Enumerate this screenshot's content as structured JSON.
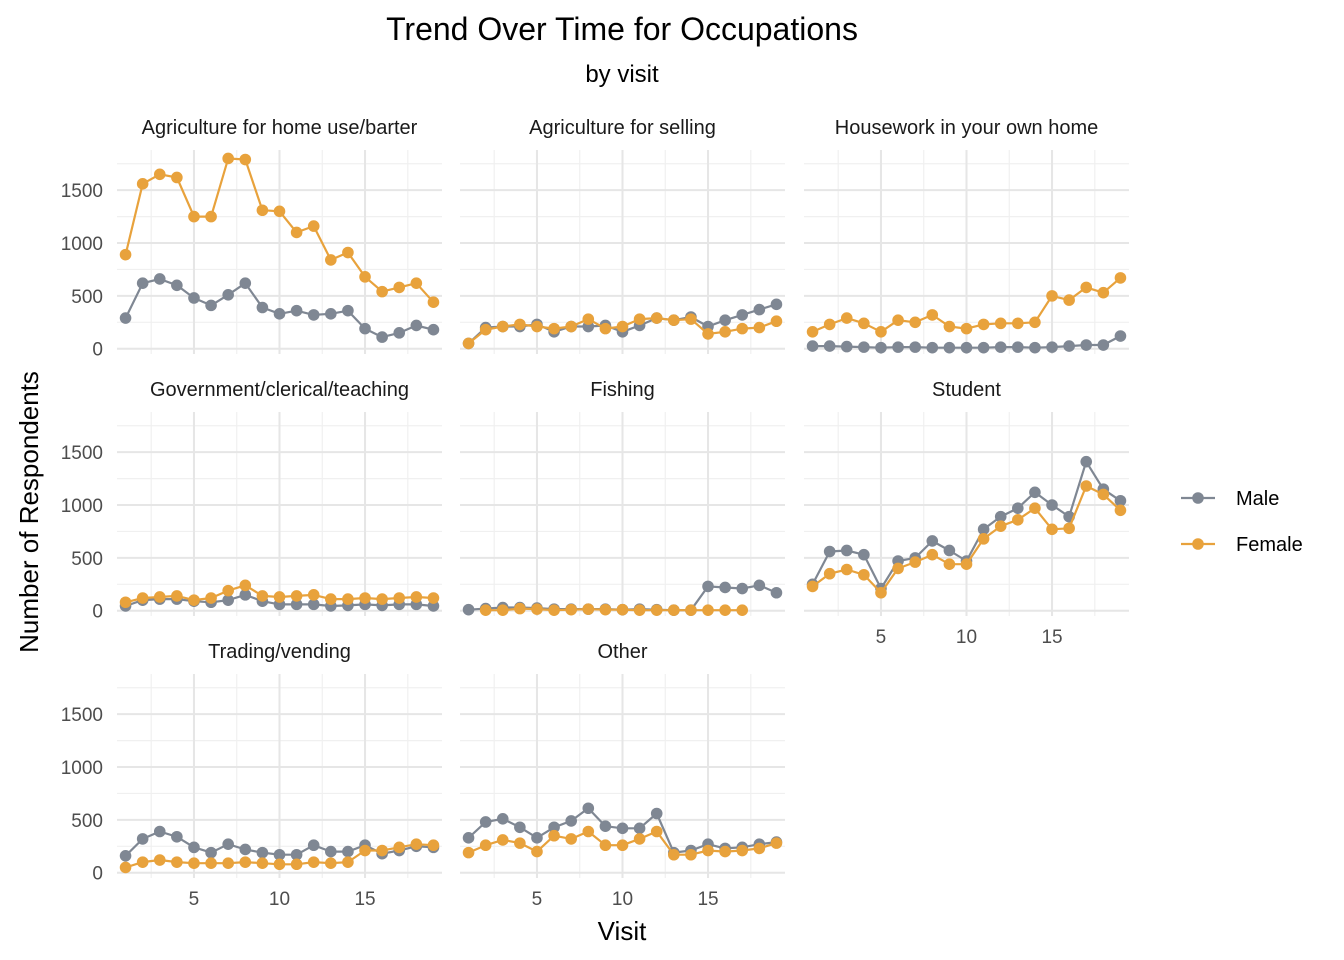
{
  "chart_data": {
    "type": "line",
    "title": "Trend Over Time for Occupations",
    "subtitle": "by visit",
    "xlabel": "Visit",
    "ylabel": "Number of Respondents",
    "x": [
      1,
      2,
      3,
      4,
      5,
      6,
      7,
      8,
      9,
      10,
      11,
      12,
      13,
      14,
      15,
      16,
      17,
      18,
      19
    ],
    "xlim": [
      0.5,
      19.5
    ],
    "ylim": [
      -50,
      1880
    ],
    "xticks": [
      5,
      10,
      15
    ],
    "yticks": [
      0,
      500,
      1000,
      1500
    ],
    "grid": true,
    "legend_position": "right",
    "legend": [
      {
        "name": "Male",
        "color": "#7F8793"
      },
      {
        "name": "Female",
        "color": "#E8A23C"
      }
    ],
    "panels": [
      {
        "title": "Agriculture for home use/barter",
        "series": [
          {
            "name": "Male",
            "x": [
              1,
              2,
              3,
              4,
              5,
              6,
              7,
              8,
              9,
              10,
              11,
              12,
              13,
              14,
              15,
              16,
              17,
              18,
              19
            ],
            "values": [
              290,
              620,
              660,
              600,
              480,
              410,
              510,
              620,
              390,
              330,
              360,
              320,
              330,
              360,
              190,
              110,
              150,
              220,
              180
            ]
          },
          {
            "name": "Female",
            "x": [
              1,
              2,
              3,
              4,
              5,
              6,
              7,
              8,
              9,
              10,
              11,
              12,
              13,
              14,
              15,
              16,
              17,
              18,
              19
            ],
            "values": [
              890,
              1560,
              1650,
              1620,
              1250,
              1250,
              1800,
              1790,
              1310,
              1300,
              1100,
              1160,
              840,
              910,
              680,
              540,
              580,
              620,
              440
            ]
          }
        ]
      },
      {
        "title": "Agriculture for selling",
        "series": [
          {
            "name": "Male",
            "x": [
              1,
              2,
              3,
              4,
              5,
              6,
              7,
              8,
              9,
              10,
              11,
              12,
              13,
              14,
              15,
              16,
              17,
              18,
              19
            ],
            "values": [
              50,
              200,
              210,
              210,
              230,
              160,
              210,
              210,
              220,
              160,
              220,
              290,
              270,
              300,
              210,
              270,
              320,
              370,
              420
            ]
          },
          {
            "name": "Female",
            "x": [
              1,
              2,
              3,
              4,
              5,
              6,
              7,
              8,
              9,
              10,
              11,
              12,
              13,
              14,
              15,
              16,
              17,
              18,
              19
            ],
            "values": [
              50,
              180,
              210,
              230,
              210,
              190,
              210,
              280,
              190,
              210,
              280,
              290,
              270,
              280,
              140,
              160,
              190,
              200,
              260
            ]
          }
        ]
      },
      {
        "title": "Housework in your own home",
        "series": [
          {
            "name": "Male",
            "x": [
              1,
              2,
              3,
              4,
              5,
              6,
              7,
              8,
              9,
              10,
              11,
              12,
              13,
              14,
              15,
              16,
              17,
              18,
              19
            ],
            "values": [
              25,
              25,
              20,
              15,
              10,
              15,
              15,
              10,
              10,
              10,
              10,
              15,
              15,
              10,
              15,
              25,
              35,
              35,
              120
            ]
          },
          {
            "name": "Female",
            "x": [
              1,
              2,
              3,
              4,
              5,
              6,
              7,
              8,
              9,
              10,
              11,
              12,
              13,
              14,
              15,
              16,
              17,
              18,
              19
            ],
            "values": [
              160,
              230,
              290,
              240,
              160,
              270,
              250,
              320,
              210,
              190,
              230,
              240,
              240,
              250,
              500,
              460,
              580,
              530,
              670
            ]
          }
        ]
      },
      {
        "title": "Government/clerical/teaching",
        "series": [
          {
            "name": "Male",
            "x": [
              1,
              2,
              3,
              4,
              5,
              6,
              7,
              8,
              9,
              10,
              11,
              12,
              13,
              14,
              15,
              16,
              17,
              18,
              19
            ],
            "values": [
              45,
              100,
              110,
              110,
              90,
              80,
              100,
              150,
              90,
              60,
              60,
              60,
              45,
              50,
              60,
              50,
              60,
              60,
              45
            ]
          },
          {
            "name": "Female",
            "x": [
              1,
              2,
              3,
              4,
              5,
              6,
              7,
              8,
              9,
              10,
              11,
              12,
              13,
              14,
              15,
              16,
              17,
              18,
              19
            ],
            "values": [
              80,
              120,
              130,
              140,
              100,
              120,
              190,
              240,
              140,
              130,
              140,
              150,
              110,
              110,
              120,
              110,
              120,
              130,
              120
            ]
          }
        ]
      },
      {
        "title": "Fishing",
        "series": [
          {
            "name": "Male",
            "x": [
              1,
              2,
              3,
              4,
              5,
              6,
              7,
              8,
              9,
              10,
              11,
              12,
              13,
              14,
              15,
              16,
              17,
              18,
              19
            ],
            "values": [
              10,
              20,
              30,
              30,
              25,
              15,
              15,
              15,
              15,
              10,
              15,
              10,
              5,
              5,
              230,
              220,
              210,
              240,
              170
            ]
          },
          {
            "name": "Female",
            "x": [
              2,
              3,
              4,
              5,
              6,
              7,
              8,
              9,
              10,
              11,
              12,
              13,
              14,
              15,
              16,
              17
            ],
            "values": [
              5,
              5,
              20,
              15,
              5,
              10,
              15,
              10,
              10,
              5,
              5,
              5,
              5,
              5,
              5,
              5
            ]
          }
        ]
      },
      {
        "title": "Student",
        "series": [
          {
            "name": "Male",
            "x": [
              1,
              2,
              3,
              4,
              5,
              6,
              7,
              8,
              9,
              10,
              11,
              12,
              13,
              14,
              15,
              16,
              17,
              18,
              19
            ],
            "values": [
              250,
              560,
              570,
              530,
              210,
              470,
              500,
              660,
              570,
              470,
              770,
              890,
              970,
              1120,
              1000,
              890,
              1410,
              1150,
              1040
            ]
          },
          {
            "name": "Female",
            "x": [
              1,
              2,
              3,
              4,
              5,
              6,
              7,
              8,
              9,
              10,
              11,
              12,
              13,
              14,
              15,
              16,
              17,
              18,
              19
            ],
            "values": [
              230,
              350,
              390,
              340,
              170,
              400,
              460,
              530,
              440,
              440,
              680,
              800,
              860,
              970,
              770,
              780,
              1180,
              1100,
              950
            ]
          }
        ]
      },
      {
        "title": "Trading/vending",
        "series": [
          {
            "name": "Male",
            "x": [
              1,
              2,
              3,
              4,
              5,
              6,
              7,
              8,
              9,
              10,
              11,
              12,
              13,
              14,
              15,
              16,
              17,
              18,
              19
            ],
            "values": [
              160,
              320,
              390,
              340,
              240,
              190,
              270,
              220,
              190,
              170,
              170,
              260,
              200,
              200,
              260,
              180,
              210,
              250,
              240
            ]
          },
          {
            "name": "Female",
            "x": [
              1,
              2,
              3,
              4,
              5,
              6,
              7,
              8,
              9,
              10,
              11,
              12,
              13,
              14,
              15,
              16,
              17,
              18,
              19
            ],
            "values": [
              50,
              100,
              120,
              100,
              90,
              90,
              90,
              100,
              90,
              80,
              80,
              100,
              90,
              100,
              210,
              210,
              240,
              270,
              260
            ]
          }
        ]
      },
      {
        "title": "Other",
        "series": [
          {
            "name": "Male",
            "x": [
              1,
              2,
              3,
              4,
              5,
              6,
              7,
              8,
              9,
              10,
              11,
              12,
              13,
              14,
              15,
              16,
              17,
              18,
              19
            ],
            "values": [
              330,
              480,
              510,
              430,
              330,
              430,
              490,
              610,
              440,
              420,
              420,
              560,
              190,
              210,
              270,
              230,
              240,
              270,
              290
            ]
          },
          {
            "name": "Female",
            "x": [
              1,
              2,
              3,
              4,
              5,
              6,
              7,
              8,
              9,
              10,
              11,
              12,
              13,
              14,
              15,
              16,
              17,
              18,
              19
            ],
            "values": [
              190,
              260,
              310,
              280,
              200,
              350,
              320,
              390,
              260,
              260,
              320,
              390,
              170,
              170,
              210,
              200,
              210,
              230,
              280
            ]
          }
        ]
      }
    ]
  }
}
